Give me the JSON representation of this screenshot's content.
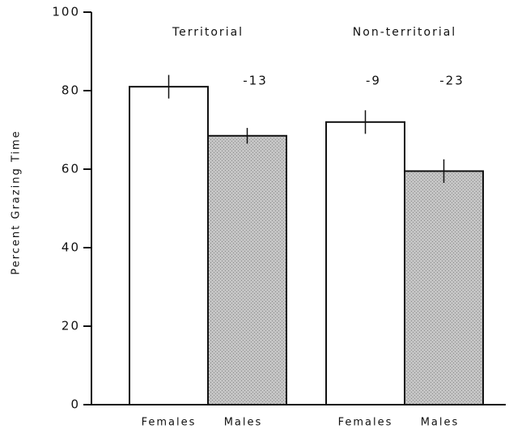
{
  "chart_data": {
    "type": "bar",
    "categories": [
      "Territorial",
      "Non-territorial"
    ],
    "series": [
      {
        "name": "Females",
        "color": "#ffffff",
        "values": [
          81,
          72
        ],
        "errors": [
          3,
          3
        ]
      },
      {
        "name": "Males",
        "color": "#c4c4c4",
        "values": [
          68.5,
          59.5
        ],
        "errors": [
          2,
          3
        ]
      }
    ],
    "annotations": [
      "-13",
      "-9",
      "-23"
    ],
    "ylabel": "Percent Grazing Time",
    "ylim": [
      0,
      100
    ],
    "yticks": [
      0,
      20,
      40,
      60,
      80,
      100
    ]
  }
}
